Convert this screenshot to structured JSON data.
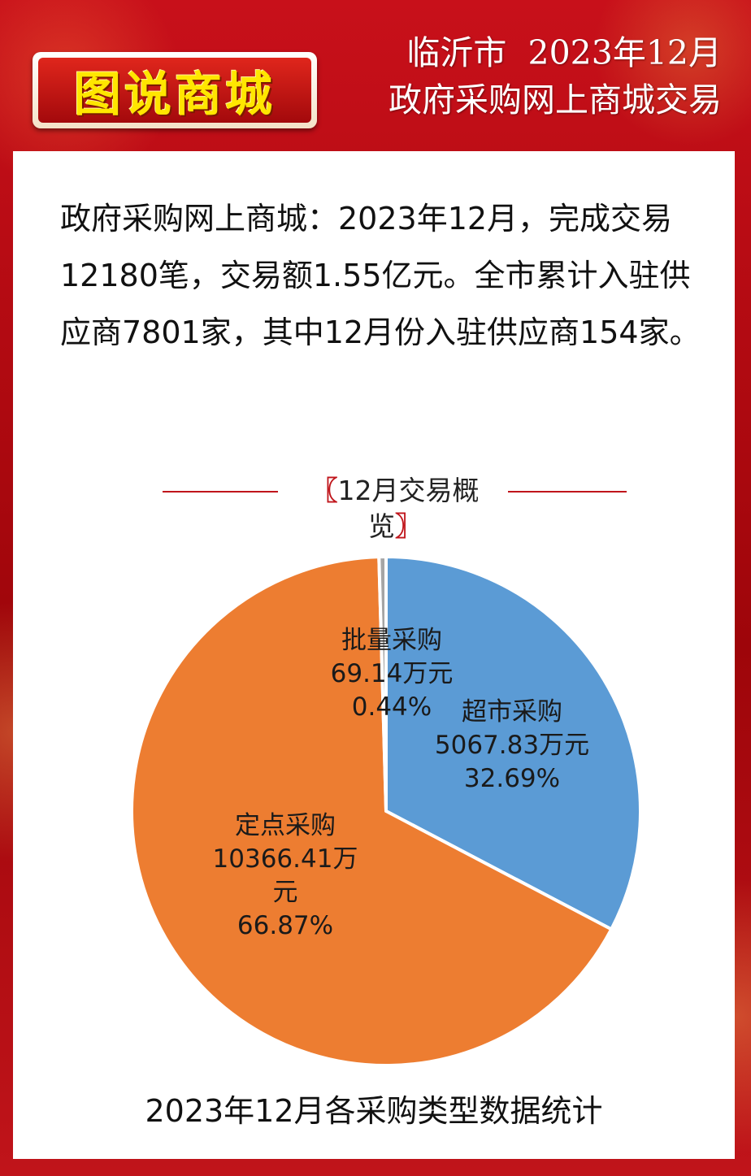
{
  "header": {
    "badge": "图说商城",
    "line1": "临沂市  2023年12月",
    "line2": "政府采购网上商城交易"
  },
  "intro_text": "政府采购网上商城：2023年12月，完成交易12180笔，交易额1.55亿元。全市累计入驻供应商7801家，其中12月份入驻供应商154家。",
  "section": {
    "bracket_left": "〖",
    "title": "12月交易概览",
    "bracket_right": "〗"
  },
  "chart_data": {
    "type": "pie",
    "title": "",
    "caption": "2023年12月各采购类型数据统计",
    "slices": [
      {
        "label": "超市采购",
        "value": 5067.83,
        "value_text": "5067.83万元",
        "percent_text": "32.69%",
        "color": "#5b9bd5"
      },
      {
        "label": "定点采购",
        "value": 10366.41,
        "value_text": "10366.41万元",
        "percent_text": "66.87%",
        "color": "#ed7d31"
      },
      {
        "label": "批量采购",
        "value": 69.14,
        "value_text": "69.14万元",
        "percent_text": "0.44%",
        "color": "#a5a5a5"
      }
    ]
  }
}
